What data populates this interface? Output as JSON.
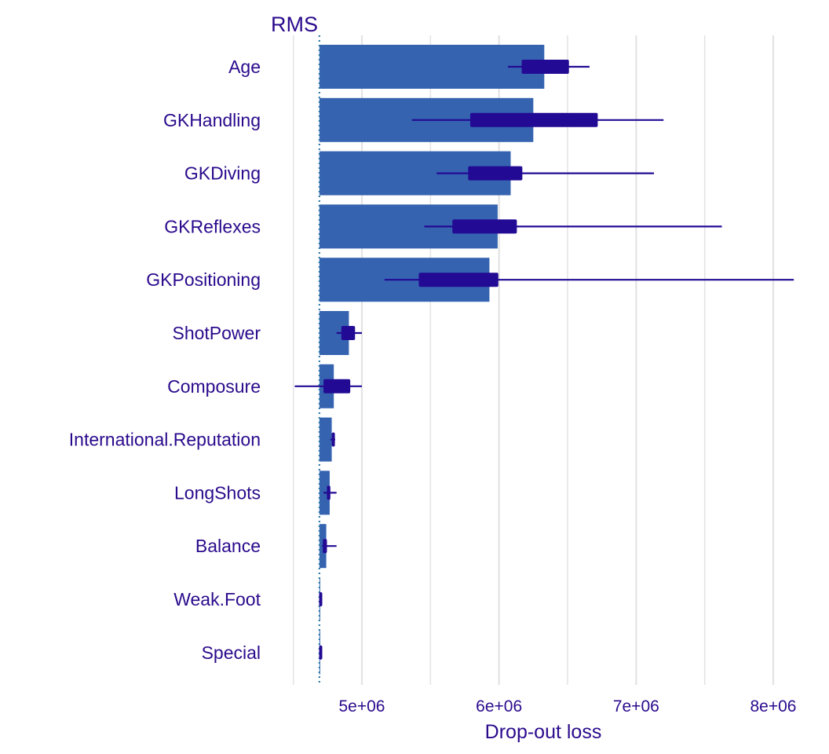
{
  "chart_data": {
    "type": "bar",
    "title": "RMS",
    "xlabel": "Drop-out loss",
    "ylabel": "",
    "baseline": 4690000,
    "xlim": [
      4440000,
      8200000
    ],
    "xticks": [
      5000000,
      6000000,
      7000000,
      8000000
    ],
    "xtick_labels": [
      "5e+06",
      "6e+06",
      "7e+06",
      "8e+06"
    ],
    "grid": true,
    "legend": "none",
    "colors": {
      "bar": "#3563B0",
      "box": "#230A94",
      "text": "#2A0A8C",
      "grid": "#E3E3E3",
      "baseline": "#2E7BA8"
    },
    "categories": [
      "Age",
      "GKHandling",
      "GKDiving",
      "GKReflexes",
      "GKPositioning",
      "ShotPower",
      "Composure",
      "International.Reputation",
      "LongShots",
      "Balance",
      "Weak.Foot",
      "Special"
    ],
    "values": [
      6330000,
      6250000,
      6085000,
      5990000,
      5930000,
      4905000,
      4795000,
      4780000,
      4765000,
      4740000,
      4692000,
      4692000
    ],
    "boxplots": [
      {
        "min": 6065000,
        "q1": 6165000,
        "q3": 6510000,
        "max": 6660000
      },
      {
        "min": 5365000,
        "q1": 5790000,
        "q3": 6720000,
        "max": 7200000
      },
      {
        "min": 5545000,
        "q1": 5775000,
        "q3": 6170000,
        "max": 7130000
      },
      {
        "min": 5455000,
        "q1": 5660000,
        "q3": 6130000,
        "max": 7625000
      },
      {
        "min": 5165000,
        "q1": 5415000,
        "q3": 5995000,
        "max": 8150000
      },
      {
        "min": 4815000,
        "q1": 4850000,
        "q3": 4950000,
        "max": 5000000
      },
      {
        "min": 4510000,
        "q1": 4720000,
        "q3": 4915000,
        "max": 5000000
      },
      {
        "min": 4770000,
        "q1": 4780000,
        "q3": 4795000,
        "max": 4805000
      },
      {
        "min": 4720000,
        "q1": 4745000,
        "q3": 4770000,
        "max": 4815000
      },
      {
        "min": 4710000,
        "q1": 4715000,
        "q3": 4745000,
        "max": 4815000
      },
      {
        "min": 4688000,
        "q1": 4688000,
        "q3": 4700000,
        "max": 4700000
      },
      {
        "min": 4688000,
        "q1": 4688000,
        "q3": 4700000,
        "max": 4700000
      }
    ]
  }
}
